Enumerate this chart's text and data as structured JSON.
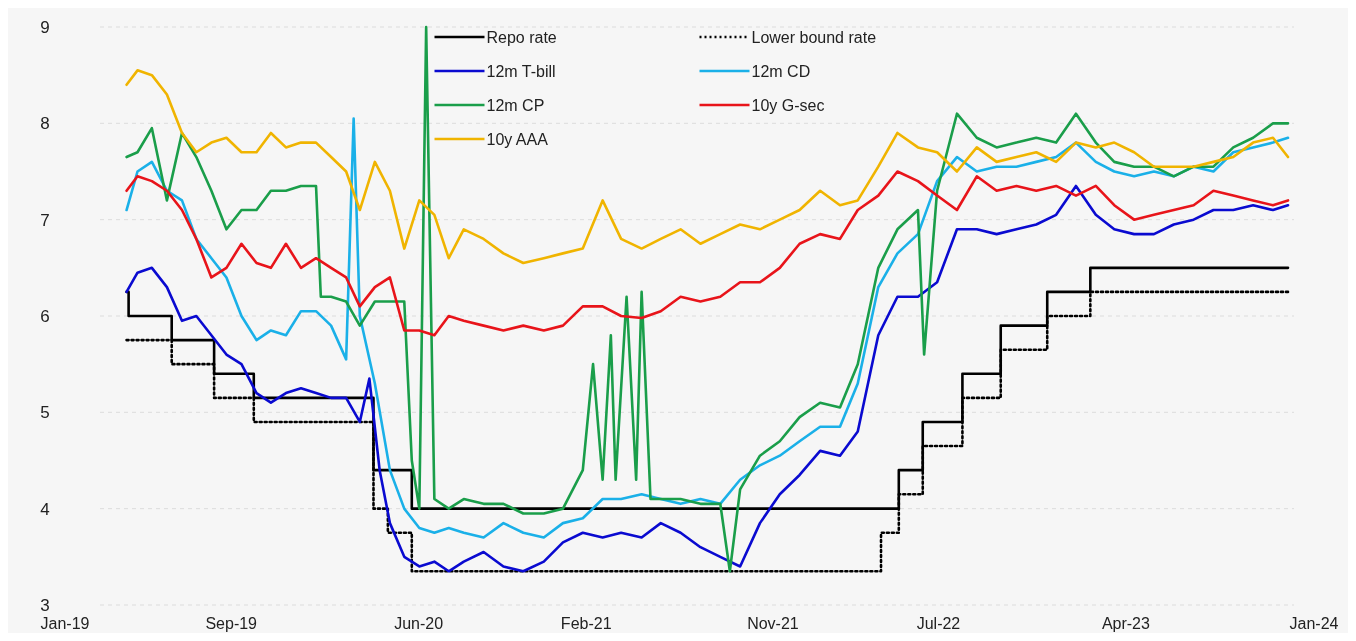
{
  "chart_data": {
    "type": "line",
    "xlim": [
      "2019-01-01",
      "2024-01-01"
    ],
    "xticks": [
      {
        "value": "2019-01-01",
        "label": "Jan-19"
      },
      {
        "value": "2019-09-01",
        "label": "Sep-19"
      },
      {
        "value": "2020-06-01",
        "label": "Jun-20"
      },
      {
        "value": "2021-02-01",
        "label": "Feb-21"
      },
      {
        "value": "2021-11-01",
        "label": "Nov-21"
      },
      {
        "value": "2022-07-01",
        "label": "Jul-22"
      },
      {
        "value": "2023-04-01",
        "label": "Apr-23"
      },
      {
        "value": "2024-01-01",
        "label": "Jan-24"
      }
    ],
    "ylim": [
      3,
      9
    ],
    "yticks": [
      3,
      4,
      5,
      6,
      7,
      8,
      9
    ],
    "grid": "y",
    "legend": "top",
    "series": [
      {
        "name": "Repo rate",
        "type": "step",
        "color": "#000000",
        "line_style": "solid",
        "x": [
          "2019-04-01",
          "2019-04-04",
          "2019-06-06",
          "2019-08-07",
          "2019-10-04",
          "2020-03-27",
          "2020-05-22",
          "2022-05-04",
          "2022-06-08",
          "2022-08-05",
          "2022-09-30",
          "2022-12-07",
          "2023-02-08",
          "2023-11-24"
        ],
        "values": [
          6.25,
          6.0,
          5.75,
          5.4,
          5.15,
          4.4,
          4.0,
          4.4,
          4.9,
          5.4,
          5.9,
          6.25,
          6.5,
          6.5
        ]
      },
      {
        "name": "Lower bound rate",
        "type": "step",
        "color": "#000000",
        "line_style": "dotted",
        "x": [
          "2019-04-01",
          "2019-06-06",
          "2019-08-07",
          "2019-10-04",
          "2020-03-27",
          "2020-04-17",
          "2020-05-22",
          "2022-04-08",
          "2022-05-04",
          "2022-06-08",
          "2022-08-05",
          "2022-09-30",
          "2022-12-07",
          "2023-02-08",
          "2023-11-24"
        ],
        "values": [
          5.75,
          5.5,
          5.15,
          4.9,
          4.0,
          3.75,
          3.35,
          3.75,
          4.15,
          4.65,
          5.15,
          5.65,
          6.0,
          6.25,
          6.25
        ]
      },
      {
        "name": "12m T-bill",
        "type": "line",
        "color": "#0a0ad0",
        "line_style": "solid",
        "x": [
          "2019-04-01",
          "2019-04-17",
          "2019-05-08",
          "2019-05-30",
          "2019-06-21",
          "2019-07-12",
          "2019-08-03",
          "2019-08-25",
          "2019-09-16",
          "2019-10-08",
          "2019-10-29",
          "2019-11-20",
          "2019-12-12",
          "2020-01-03",
          "2020-01-25",
          "2020-02-16",
          "2020-03-07",
          "2020-03-21",
          "2020-04-05",
          "2020-04-20",
          "2020-05-11",
          "2020-06-02",
          "2020-06-24",
          "2020-07-15",
          "2020-08-06",
          "2020-09-04",
          "2020-10-03",
          "2020-11-01",
          "2020-12-01",
          "2020-12-29",
          "2021-01-27",
          "2021-02-25",
          "2021-03-24",
          "2021-04-23",
          "2021-05-21",
          "2021-06-19",
          "2021-07-18",
          "2021-08-16",
          "2021-09-14",
          "2021-10-13",
          "2021-11-11",
          "2021-12-10",
          "2022-01-09",
          "2022-02-07",
          "2022-03-05",
          "2022-04-04",
          "2022-05-02",
          "2022-06-01",
          "2022-06-29",
          "2022-07-28",
          "2022-08-26",
          "2022-09-24",
          "2022-10-23",
          "2022-11-21",
          "2022-12-20",
          "2023-01-18",
          "2023-02-16",
          "2023-03-15",
          "2023-04-13",
          "2023-05-12",
          "2023-06-10",
          "2023-07-09",
          "2023-08-07",
          "2023-09-05",
          "2023-10-04",
          "2023-11-02",
          "2023-11-24"
        ],
        "values": [
          6.25,
          6.45,
          6.5,
          6.3,
          5.95,
          6.0,
          5.8,
          5.6,
          5.5,
          5.2,
          5.1,
          5.2,
          5.25,
          5.2,
          5.15,
          5.15,
          4.9,
          5.35,
          4.4,
          3.85,
          3.5,
          3.4,
          3.45,
          3.35,
          3.45,
          3.55,
          3.4,
          3.35,
          3.45,
          3.65,
          3.75,
          3.7,
          3.75,
          3.7,
          3.85,
          3.75,
          3.6,
          3.5,
          3.4,
          3.85,
          4.15,
          4.35,
          4.6,
          4.55,
          4.8,
          5.8,
          6.2,
          6.2,
          6.35,
          6.9,
          6.9,
          6.85,
          6.9,
          6.95,
          7.05,
          7.35,
          7.05,
          6.9,
          6.85,
          6.85,
          6.95,
          7.0,
          7.1,
          7.1,
          7.15,
          7.1,
          7.15
        ]
      },
      {
        "name": "12m CD",
        "type": "line",
        "color": "#1ab0e8",
        "line_style": "solid",
        "x": [
          "2019-04-01",
          "2019-04-17",
          "2019-05-08",
          "2019-05-30",
          "2019-06-21",
          "2019-07-12",
          "2019-08-03",
          "2019-08-25",
          "2019-09-16",
          "2019-10-08",
          "2019-10-29",
          "2019-11-20",
          "2019-12-12",
          "2020-01-03",
          "2020-01-25",
          "2020-02-16",
          "2020-02-27",
          "2020-03-07",
          "2020-03-29",
          "2020-04-20",
          "2020-05-11",
          "2020-06-02",
          "2020-06-24",
          "2020-07-15",
          "2020-08-06",
          "2020-09-04",
          "2020-10-03",
          "2020-11-01",
          "2020-12-01",
          "2020-12-29",
          "2021-01-27",
          "2021-02-25",
          "2021-03-24",
          "2021-04-23",
          "2021-05-21",
          "2021-06-19",
          "2021-07-18",
          "2021-08-16",
          "2021-09-14",
          "2021-10-13",
          "2021-11-11",
          "2021-12-10",
          "2022-01-09",
          "2022-02-07",
          "2022-03-05",
          "2022-04-04",
          "2022-05-02",
          "2022-06-01",
          "2022-06-29",
          "2022-07-28",
          "2022-08-26",
          "2022-09-24",
          "2022-10-23",
          "2022-11-21",
          "2022-12-20",
          "2023-01-18",
          "2023-02-16",
          "2023-03-15",
          "2023-04-13",
          "2023-05-12",
          "2023-06-10",
          "2023-07-09",
          "2023-08-07",
          "2023-09-05",
          "2023-10-04",
          "2023-11-02",
          "2023-11-24"
        ],
        "values": [
          7.1,
          7.5,
          7.6,
          7.3,
          7.2,
          6.8,
          6.6,
          6.4,
          6.0,
          5.75,
          5.85,
          5.8,
          6.05,
          6.05,
          5.9,
          5.55,
          8.05,
          6.0,
          5.3,
          4.4,
          4.0,
          3.8,
          3.75,
          3.8,
          3.75,
          3.7,
          3.85,
          3.75,
          3.7,
          3.85,
          3.9,
          4.1,
          4.1,
          4.15,
          4.1,
          4.05,
          4.1,
          4.05,
          4.3,
          4.45,
          4.55,
          4.7,
          4.85,
          4.85,
          5.3,
          6.3,
          6.65,
          6.85,
          7.4,
          7.65,
          7.5,
          7.55,
          7.55,
          7.6,
          7.65,
          7.8,
          7.6,
          7.5,
          7.45,
          7.5,
          7.45,
          7.55,
          7.5,
          7.7,
          7.75,
          7.8,
          7.85
        ]
      },
      {
        "name": "12m CP",
        "type": "line",
        "color": "#1a9e4a",
        "line_style": "solid",
        "x": [
          "2019-04-01",
          "2019-04-17",
          "2019-05-08",
          "2019-05-30",
          "2019-06-21",
          "2019-07-12",
          "2019-08-03",
          "2019-08-25",
          "2019-09-16",
          "2019-10-08",
          "2019-10-29",
          "2019-11-20",
          "2019-12-12",
          "2020-01-03",
          "2020-01-10",
          "2020-01-25",
          "2020-02-16",
          "2020-03-07",
          "2020-03-29",
          "2020-04-20",
          "2020-05-11",
          "2020-05-22",
          "2020-06-02",
          "2020-06-12",
          "2020-06-24",
          "2020-07-15",
          "2020-08-06",
          "2020-09-04",
          "2020-10-03",
          "2020-11-01",
          "2020-12-01",
          "2020-12-29",
          "2021-01-27",
          "2021-02-11",
          "2021-02-25",
          "2021-03-09",
          "2021-03-16",
          "2021-04-01",
          "2021-04-15",
          "2021-04-23",
          "2021-05-06",
          "2021-06-19",
          "2021-07-18",
          "2021-08-16",
          "2021-08-30",
          "2021-09-14",
          "2021-10-13",
          "2021-11-11",
          "2021-12-10",
          "2022-01-09",
          "2022-02-07",
          "2022-03-05",
          "2022-04-04",
          "2022-05-02",
          "2022-06-01",
          "2022-06-10",
          "2022-06-29",
          "2022-07-28",
          "2022-08-26",
          "2022-09-24",
          "2022-10-23",
          "2022-11-21",
          "2022-12-20",
          "2023-01-18",
          "2023-02-16",
          "2023-03-15",
          "2023-04-13",
          "2023-05-12",
          "2023-06-10",
          "2023-07-09",
          "2023-08-07",
          "2023-09-05",
          "2023-10-04",
          "2023-11-02",
          "2023-11-24"
        ],
        "values": [
          7.65,
          7.7,
          7.95,
          7.2,
          7.9,
          7.65,
          7.3,
          6.9,
          7.1,
          7.1,
          7.3,
          7.3,
          7.35,
          7.35,
          6.2,
          6.2,
          6.15,
          5.9,
          6.15,
          6.15,
          6.15,
          4.5,
          4.0,
          9.0,
          4.1,
          4.0,
          4.1,
          4.05,
          4.05,
          3.95,
          3.95,
          4.0,
          4.4,
          5.5,
          4.3,
          5.8,
          4.3,
          6.2,
          4.3,
          6.25,
          4.1,
          4.1,
          4.05,
          4.05,
          3.35,
          4.2,
          4.55,
          4.7,
          4.95,
          5.1,
          5.05,
          5.5,
          6.5,
          6.9,
          7.1,
          5.6,
          7.3,
          8.1,
          7.85,
          7.75,
          7.8,
          7.85,
          7.8,
          8.1,
          7.8,
          7.6,
          7.55,
          7.55,
          7.45,
          7.55,
          7.55,
          7.75,
          7.85,
          8.0,
          8.0
        ]
      },
      {
        "name": "10y G-sec",
        "type": "line",
        "color": "#e8141a",
        "line_style": "solid",
        "x": [
          "2019-04-01",
          "2019-04-17",
          "2019-05-08",
          "2019-05-30",
          "2019-06-21",
          "2019-07-12",
          "2019-08-03",
          "2019-08-25",
          "2019-09-16",
          "2019-10-08",
          "2019-10-29",
          "2019-11-20",
          "2019-12-12",
          "2020-01-03",
          "2020-01-25",
          "2020-02-16",
          "2020-03-07",
          "2020-03-29",
          "2020-04-20",
          "2020-05-11",
          "2020-06-02",
          "2020-06-24",
          "2020-07-15",
          "2020-08-06",
          "2020-09-04",
          "2020-10-03",
          "2020-11-01",
          "2020-12-01",
          "2020-12-29",
          "2021-01-27",
          "2021-02-25",
          "2021-03-24",
          "2021-04-23",
          "2021-05-21",
          "2021-06-19",
          "2021-07-18",
          "2021-08-16",
          "2021-09-14",
          "2021-10-13",
          "2021-11-11",
          "2021-12-10",
          "2022-01-09",
          "2022-02-07",
          "2022-03-05",
          "2022-04-04",
          "2022-05-02",
          "2022-06-01",
          "2022-06-29",
          "2022-07-28",
          "2022-08-26",
          "2022-09-24",
          "2022-10-23",
          "2022-11-21",
          "2022-12-20",
          "2023-01-18",
          "2023-02-16",
          "2023-03-15",
          "2023-04-13",
          "2023-05-12",
          "2023-06-10",
          "2023-07-09",
          "2023-08-07",
          "2023-09-05",
          "2023-10-04",
          "2023-11-02",
          "2023-11-24"
        ],
        "values": [
          7.3,
          7.45,
          7.4,
          7.3,
          7.1,
          6.8,
          6.4,
          6.5,
          6.75,
          6.55,
          6.5,
          6.75,
          6.5,
          6.6,
          6.5,
          6.4,
          6.1,
          6.3,
          6.4,
          5.85,
          5.85,
          5.8,
          6.0,
          5.95,
          5.9,
          5.85,
          5.9,
          5.85,
          5.9,
          6.1,
          6.1,
          6.0,
          5.98,
          6.05,
          6.2,
          6.15,
          6.2,
          6.35,
          6.35,
          6.5,
          6.75,
          6.85,
          6.8,
          7.1,
          7.25,
          7.5,
          7.4,
          7.25,
          7.1,
          7.45,
          7.3,
          7.35,
          7.3,
          7.35,
          7.25,
          7.35,
          7.15,
          7.0,
          7.05,
          7.1,
          7.15,
          7.3,
          7.25,
          7.2,
          7.15,
          7.2
        ]
      },
      {
        "name": "10y AAA",
        "type": "line",
        "color": "#f0b400",
        "line_style": "solid",
        "x": [
          "2019-04-01",
          "2019-04-17",
          "2019-05-08",
          "2019-05-30",
          "2019-06-21",
          "2019-07-12",
          "2019-08-03",
          "2019-08-25",
          "2019-09-16",
          "2019-10-08",
          "2019-10-29",
          "2019-11-20",
          "2019-12-12",
          "2020-01-03",
          "2020-01-25",
          "2020-02-16",
          "2020-03-07",
          "2020-03-29",
          "2020-04-20",
          "2020-05-11",
          "2020-06-02",
          "2020-06-24",
          "2020-07-15",
          "2020-08-06",
          "2020-09-04",
          "2020-10-03",
          "2020-11-01",
          "2020-12-01",
          "2020-12-29",
          "2021-01-27",
          "2021-02-25",
          "2021-03-24",
          "2021-04-23",
          "2021-05-21",
          "2021-06-19",
          "2021-07-18",
          "2021-08-16",
          "2021-09-14",
          "2021-10-13",
          "2021-11-11",
          "2021-12-10",
          "2022-01-09",
          "2022-02-07",
          "2022-03-05",
          "2022-04-04",
          "2022-05-02",
          "2022-06-01",
          "2022-06-29",
          "2022-07-28",
          "2022-08-26",
          "2022-09-24",
          "2022-10-23",
          "2022-11-21",
          "2022-12-20",
          "2023-01-18",
          "2023-02-16",
          "2023-03-15",
          "2023-04-13",
          "2023-05-12",
          "2023-06-10",
          "2023-07-09",
          "2023-08-07",
          "2023-09-05",
          "2023-10-04",
          "2023-11-02",
          "2023-11-24"
        ],
        "values": [
          8.4,
          8.55,
          8.5,
          8.3,
          7.9,
          7.7,
          7.8,
          7.85,
          7.7,
          7.7,
          7.9,
          7.75,
          7.8,
          7.8,
          7.65,
          7.5,
          7.1,
          7.6,
          7.3,
          6.7,
          7.2,
          7.05,
          6.6,
          6.9,
          6.8,
          6.65,
          6.55,
          6.6,
          6.65,
          6.7,
          7.2,
          6.8,
          6.7,
          6.8,
          6.9,
          6.75,
          6.85,
          6.95,
          6.9,
          7.0,
          7.1,
          7.3,
          7.15,
          7.2,
          7.55,
          7.9,
          7.75,
          7.7,
          7.5,
          7.75,
          7.6,
          7.65,
          7.7,
          7.6,
          7.8,
          7.75,
          7.8,
          7.7,
          7.55,
          7.55,
          7.55,
          7.6,
          7.65,
          7.8,
          7.85,
          7.65
        ]
      }
    ]
  }
}
